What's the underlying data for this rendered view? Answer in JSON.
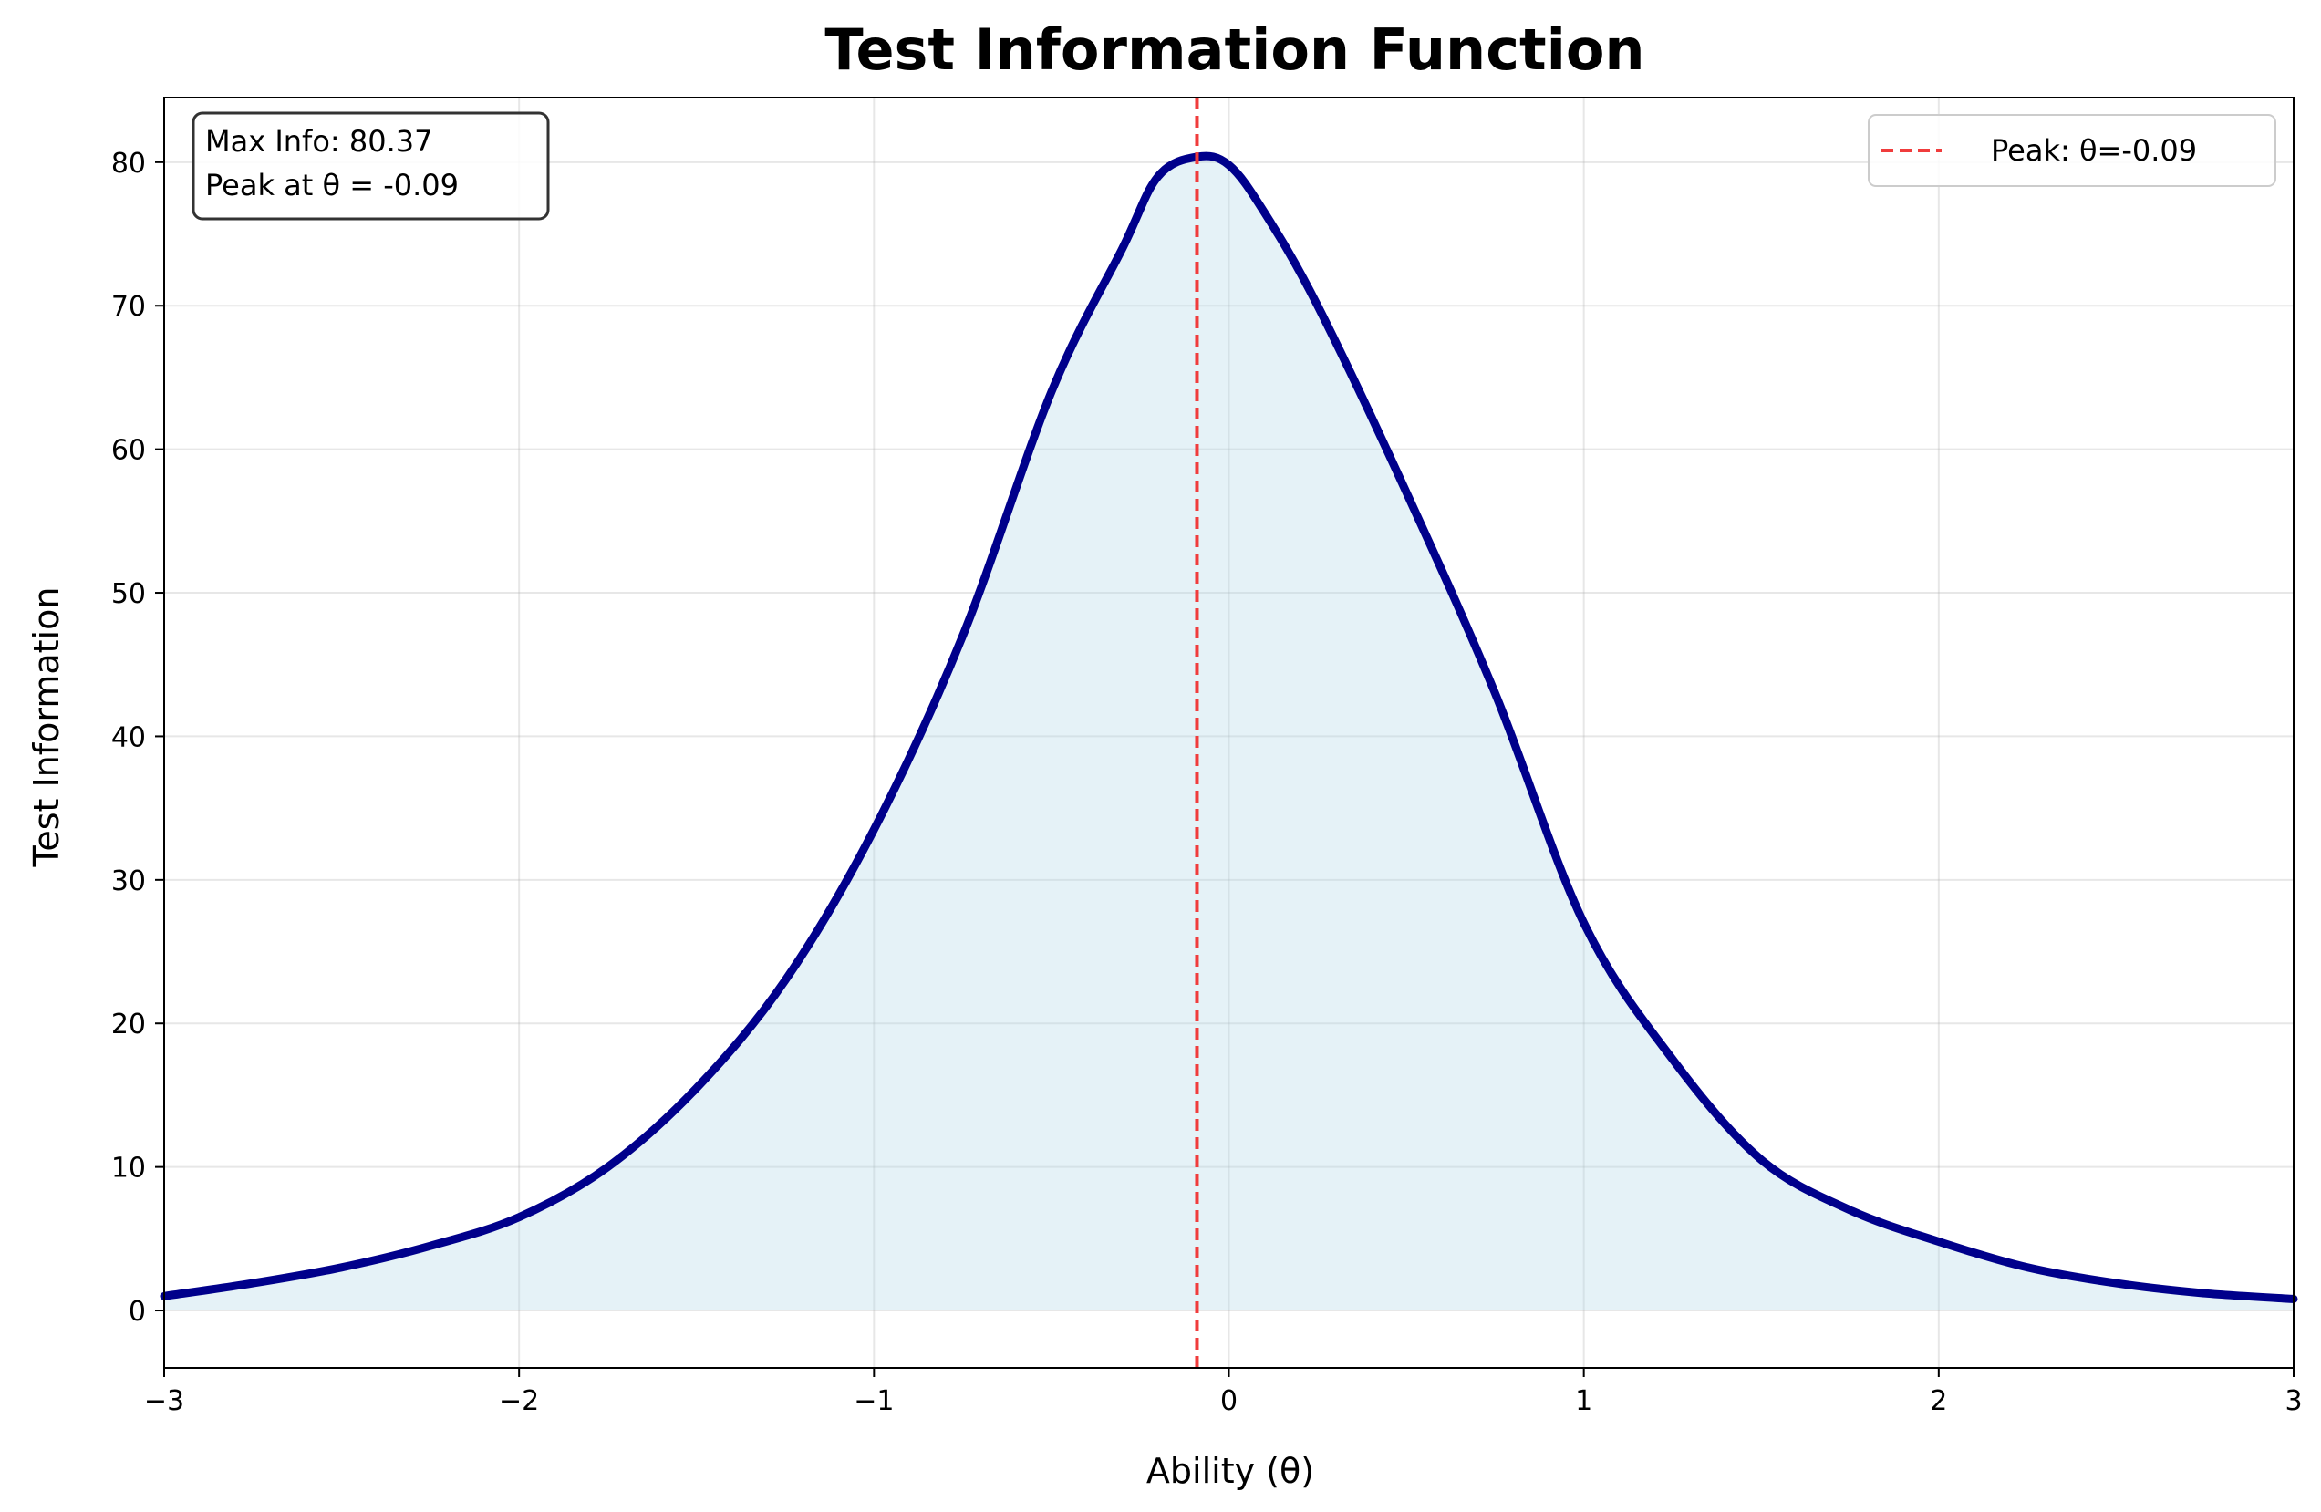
{
  "chart_data": {
    "type": "line",
    "title": "Test Information Function",
    "xlabel": "Ability (θ)",
    "ylabel": "Test Information",
    "xlim": [
      -3,
      3
    ],
    "ylim": [
      -4,
      84.5
    ],
    "xticks": [
      -3,
      -2,
      -1,
      0,
      1,
      2,
      3
    ],
    "xtick_labels": [
      "−3",
      "−2",
      "−1",
      "0",
      "1",
      "2",
      "3"
    ],
    "yticks": [
      0,
      10,
      20,
      30,
      40,
      50,
      60,
      70,
      80
    ],
    "ytick_labels": [
      "0",
      "10",
      "20",
      "30",
      "40",
      "50",
      "60",
      "70",
      "80"
    ],
    "grid": true,
    "legend_position": "top-right",
    "series": [
      {
        "name": "",
        "color": "#00008B",
        "fill_color": "#ADD8E6",
        "x": [
          -3.0,
          -2.75,
          -2.5,
          -2.25,
          -2.0,
          -1.75,
          -1.5,
          -1.25,
          -1.0,
          -0.75,
          -0.5,
          -0.3,
          -0.2,
          -0.09,
          0.0,
          0.1,
          0.25,
          0.5,
          0.75,
          1.0,
          1.25,
          1.5,
          1.75,
          2.0,
          2.25,
          2.5,
          2.75,
          3.0
        ],
        "y": [
          1.0,
          1.9,
          3.0,
          4.5,
          6.5,
          10.0,
          15.5,
          23.0,
          33.5,
          47.0,
          64.0,
          74.0,
          79.0,
          80.37,
          79.8,
          76.5,
          70.0,
          57.0,
          43.0,
          27.0,
          17.5,
          10.5,
          7.0,
          4.8,
          3.0,
          1.9,
          1.2,
          0.8
        ]
      }
    ],
    "peak_line": {
      "x": -0.09,
      "label": "Peak: θ=-0.09",
      "color": "#F03C3C"
    },
    "annotation": {
      "lines": [
        "Max Info: 80.37",
        "Peak at θ = -0.09"
      ]
    }
  }
}
